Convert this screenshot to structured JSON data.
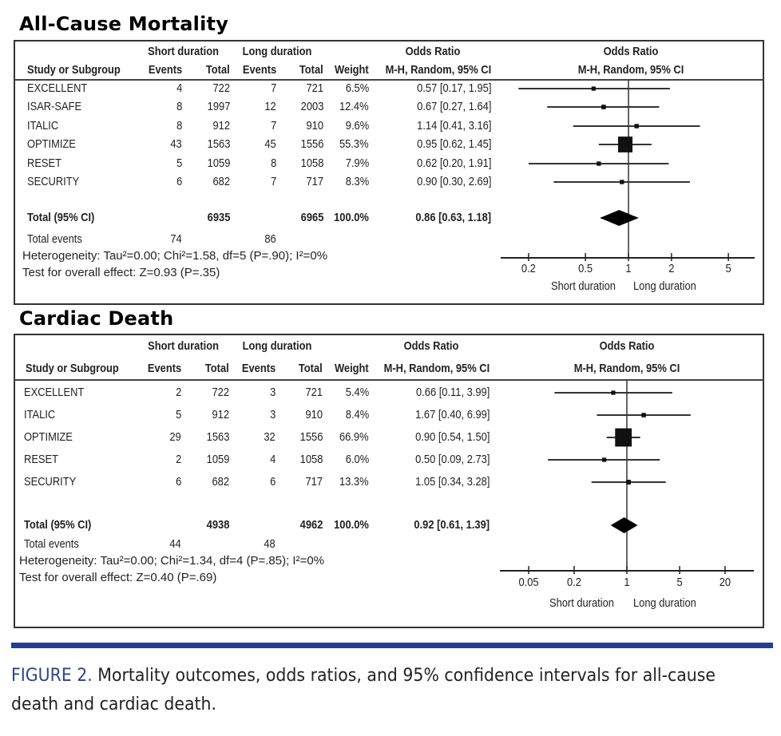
{
  "panels": [
    {
      "title": "All-Cause Mortality",
      "header": {
        "group1": "Short duration",
        "group2": "Long duration",
        "or_text_title": "Odds Ratio",
        "or_text_sub": "M-H, Random, 95% CI",
        "or_plot_title": "Odds Ratio",
        "or_plot_sub": "M-H, Random, 95% CI",
        "study": "Study or Subgroup",
        "events1": "Events",
        "total1": "Total",
        "events2": "Events",
        "total2": "Total",
        "weight": "Weight"
      },
      "rows": [
        {
          "study": "EXCELLENT",
          "e1": "4",
          "t1": "722",
          "e2": "7",
          "t2": "721",
          "weight": "6.5%",
          "ci_text": "0.57 [0.17, 1.95]"
        },
        {
          "study": "ISAR-SAFE",
          "e1": "8",
          "t1": "1997",
          "e2": "12",
          "t2": "2003",
          "weight": "12.4%",
          "ci_text": "0.67 [0.27, 1.64]"
        },
        {
          "study": "ITALIC",
          "e1": "8",
          "t1": "912",
          "e2": "7",
          "t2": "910",
          "weight": "9.6%",
          "ci_text": "1.14 [0.41, 3.16]"
        },
        {
          "study": "OPTIMIZE",
          "e1": "43",
          "t1": "1563",
          "e2": "45",
          "t2": "1556",
          "weight": "55.3%",
          "ci_text": "0.95 [0.62, 1.45]"
        },
        {
          "study": "RESET",
          "e1": "5",
          "t1": "1059",
          "e2": "8",
          "t2": "1058",
          "weight": "7.9%",
          "ci_text": "0.62 [0.20, 1.91]"
        },
        {
          "study": "SECURITY",
          "e1": "6",
          "t1": "682",
          "e2": "7",
          "t2": "717",
          "weight": "8.3%",
          "ci_text": "0.90 [0.30, 2.69]"
        }
      ],
      "total": {
        "label": "Total (95% CI)",
        "t1": "6935",
        "t2": "6965",
        "weight": "100.0%",
        "ci_text": "0.86 [0.63, 1.18]"
      },
      "total_events": {
        "label": "Total events",
        "e1": "74",
        "e2": "86"
      },
      "heterogeneity": "Heterogeneity: Tau²=0.00; Chi²=1.58, df=5 (P=.90); I²=0%",
      "overall_effect": "Test for overall effect: Z=0.93 (P=.35)",
      "axis_left_label": "Short duration",
      "axis_right_label": "Long duration"
    },
    {
      "title": "Cardiac Death",
      "header": {
        "group1": "Short duration",
        "group2": "Long duration",
        "or_text_title": "Odds Ratio",
        "or_text_sub": "M-H, Random, 95% CI",
        "or_plot_title": "Odds Ratio",
        "or_plot_sub": "M-H, Random, 95% CI",
        "study": "Study or Subgroup",
        "events1": "Events",
        "total1": "Total",
        "events2": "Events",
        "total2": "Total",
        "weight": "Weight"
      },
      "rows": [
        {
          "study": "EXCELLENT",
          "e1": "2",
          "t1": "722",
          "e2": "3",
          "t2": "721",
          "weight": "5.4%",
          "ci_text": "0.66 [0.11, 3.99]"
        },
        {
          "study": "ITALIC",
          "e1": "5",
          "t1": "912",
          "e2": "3",
          "t2": "910",
          "weight": "8.4%",
          "ci_text": "1.67 [0.40, 6.99]"
        },
        {
          "study": "OPTIMIZE",
          "e1": "29",
          "t1": "1563",
          "e2": "32",
          "t2": "1556",
          "weight": "66.9%",
          "ci_text": "0.90 [0.54, 1.50]"
        },
        {
          "study": "RESET",
          "e1": "2",
          "t1": "1059",
          "e2": "4",
          "t2": "1058",
          "weight": "6.0%",
          "ci_text": "0.50 [0.09, 2.73]"
        },
        {
          "study": "SECURITY",
          "e1": "6",
          "t1": "682",
          "e2": "6",
          "t2": "717",
          "weight": "13.3%",
          "ci_text": "1.05 [0.34, 3.28]"
        }
      ],
      "total": {
        "label": "Total (95% CI)",
        "t1": "4938",
        "t2": "4962",
        "weight": "100.0%",
        "ci_text": "0.92 [0.61, 1.39]"
      },
      "total_events": {
        "label": "Total events",
        "e1": "44",
        "e2": "48"
      },
      "heterogeneity": "Heterogeneity: Tau²=0.00; Chi²=1.34, df=4 (P=.85); I²=0%",
      "overall_effect": "Test for overall effect: Z=0.40 (P=.69)",
      "axis_left_label": "Short duration",
      "axis_right_label": "Long duration"
    }
  ],
  "caption": {
    "label": "FIGURE 2.",
    "text": " Mortality outcomes, odds ratios, and 95% confidence intervals for all-cause death and cardiac death."
  },
  "colors": {
    "caption_accent": "#2a4590",
    "rule_bar": "#243f8c",
    "marker": "#111111"
  },
  "chart_data": [
    {
      "type": "forest",
      "title": "All-Cause Mortality",
      "xlabel_left": "Short duration",
      "xlabel_right": "Long duration",
      "x_scale": "log",
      "xlim": [
        0.1,
        7
      ],
      "ticks": [
        0.2,
        0.5,
        1,
        2,
        5
      ],
      "tick_labels": [
        "0.2",
        "0.5",
        "1",
        "2",
        "5"
      ],
      "reference_line": 1,
      "studies": [
        {
          "name": "EXCELLENT",
          "or": 0.57,
          "lo": 0.17,
          "hi": 1.95,
          "weight": 6.5
        },
        {
          "name": "ISAR-SAFE",
          "or": 0.67,
          "lo": 0.27,
          "hi": 1.64,
          "weight": 12.4
        },
        {
          "name": "ITALIC",
          "or": 1.14,
          "lo": 0.41,
          "hi": 3.16,
          "weight": 9.6
        },
        {
          "name": "OPTIMIZE",
          "or": 0.95,
          "lo": 0.62,
          "hi": 1.45,
          "weight": 55.3
        },
        {
          "name": "RESET",
          "or": 0.62,
          "lo": 0.2,
          "hi": 1.91,
          "weight": 7.9
        },
        {
          "name": "SECURITY",
          "or": 0.9,
          "lo": 0.3,
          "hi": 2.69,
          "weight": 8.3
        }
      ],
      "pooled": {
        "or": 0.86,
        "lo": 0.63,
        "hi": 1.18
      }
    },
    {
      "type": "forest",
      "title": "Cardiac Death",
      "xlabel_left": "Short duration",
      "xlabel_right": "Long duration",
      "x_scale": "log",
      "xlim": [
        0.02,
        40
      ],
      "ticks": [
        0.05,
        0.2,
        1,
        5,
        20
      ],
      "tick_labels": [
        "0.05",
        "0.2",
        "1",
        "5",
        "20"
      ],
      "reference_line": 1,
      "studies": [
        {
          "name": "EXCELLENT",
          "or": 0.66,
          "lo": 0.11,
          "hi": 3.99,
          "weight": 5.4
        },
        {
          "name": "ITALIC",
          "or": 1.67,
          "lo": 0.4,
          "hi": 6.99,
          "weight": 8.4
        },
        {
          "name": "OPTIMIZE",
          "or": 0.9,
          "lo": 0.54,
          "hi": 1.5,
          "weight": 66.9
        },
        {
          "name": "RESET",
          "or": 0.5,
          "lo": 0.09,
          "hi": 2.73,
          "weight": 6.0
        },
        {
          "name": "SECURITY",
          "or": 1.05,
          "lo": 0.34,
          "hi": 3.28,
          "weight": 13.3
        }
      ],
      "pooled": {
        "or": 0.92,
        "lo": 0.61,
        "hi": 1.39
      }
    }
  ]
}
